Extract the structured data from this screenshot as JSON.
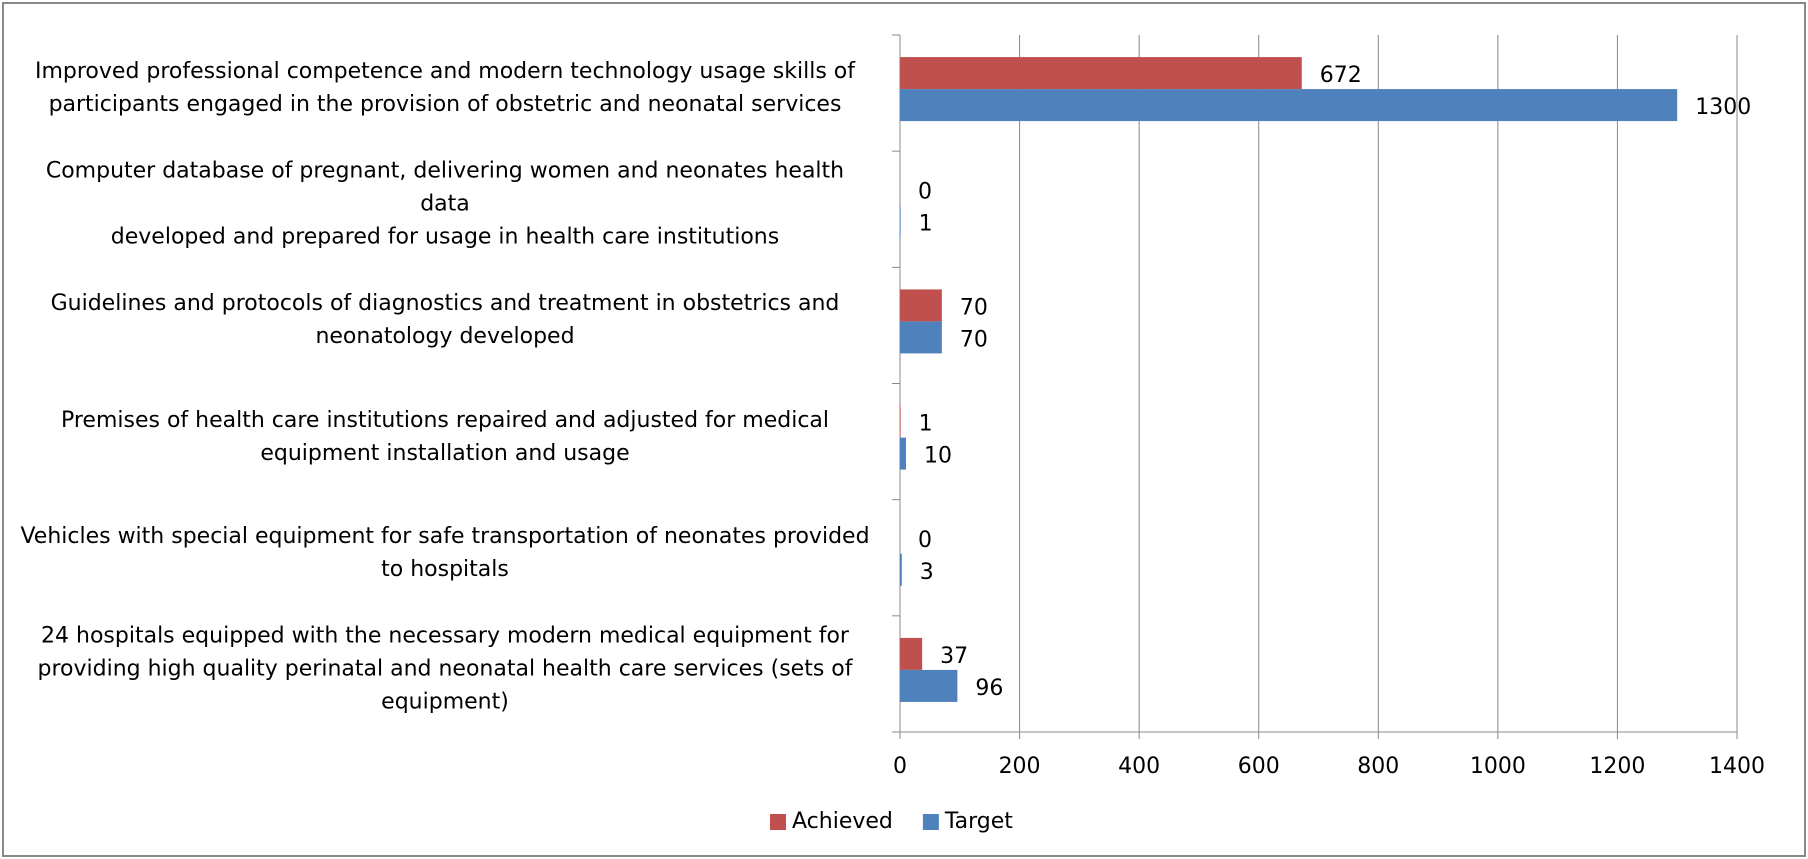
{
  "chart_data": {
    "type": "bar",
    "orientation": "horizontal",
    "categories": [
      "Improved professional competence and modern technology usage skills of participants engaged in the provision of obstetric and neonatal services",
      "Computer database of pregnant, delivering women and neonates health data\ndeveloped and prepared for usage in health care institutions",
      "Guidelines and protocols of diagnostics and treatment in obstetrics and neonatology developed",
      "Premises of health care institutions repaired and adjusted for medical equipment installation and usage",
      "Vehicles with special equipment for safe transportation of neonates provided to hospitals",
      "24 hospitals equipped with the necessary modern medical equipment for providing high quality perinatal and neonatal health care services (sets of equipment)"
    ],
    "series": [
      {
        "name": "Achieved",
        "color": "#c0504d",
        "values": [
          672,
          0,
          70,
          1,
          0,
          37
        ]
      },
      {
        "name": "Target",
        "color": "#4f81bd",
        "values": [
          1300,
          1,
          70,
          10,
          3,
          96
        ]
      }
    ],
    "xlim": [
      0,
      1400
    ],
    "xticks": [
      0,
      200,
      400,
      600,
      800,
      1000,
      1200,
      1400
    ],
    "grid": true,
    "legend": "bottom"
  }
}
